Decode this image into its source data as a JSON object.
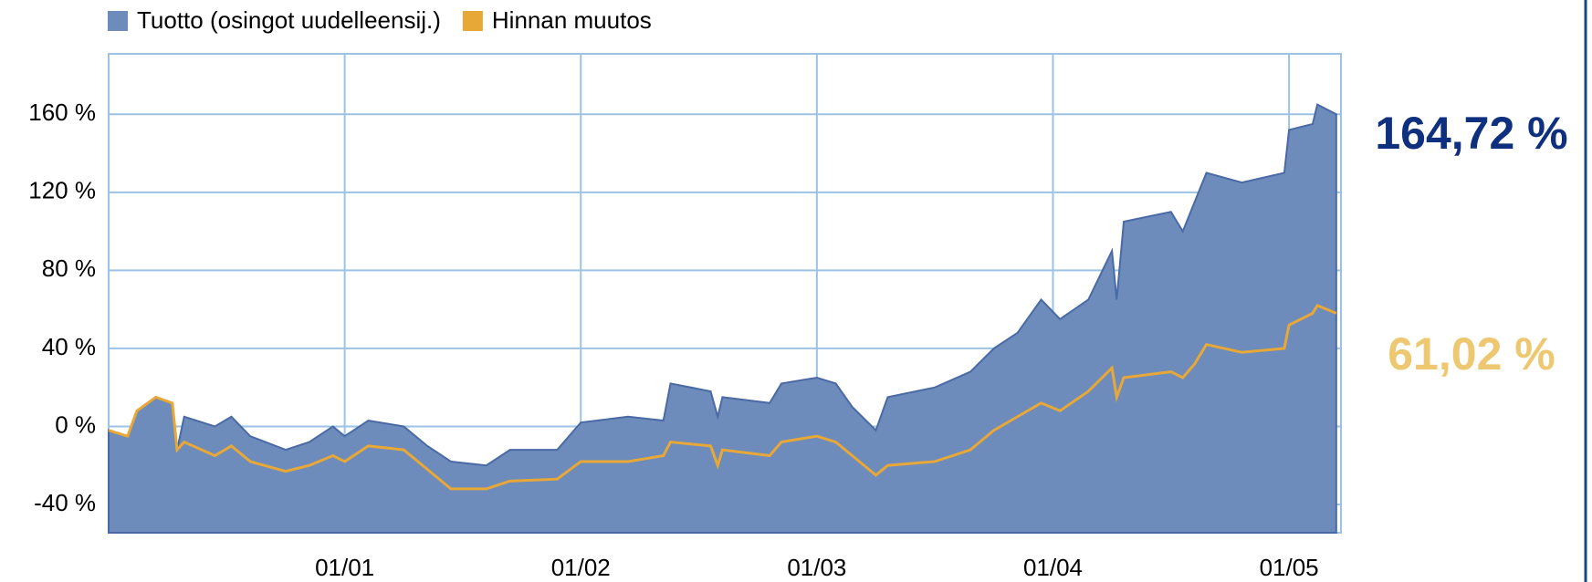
{
  "chart_data": {
    "type": "area_line",
    "x": [
      2000.0,
      2000.08,
      2000.12,
      2000.2,
      2000.27,
      2000.29,
      2000.32,
      2000.45,
      2000.52,
      2000.6,
      2000.75,
      2000.85,
      2000.95,
      2001.0,
      2001.1,
      2001.25,
      2001.35,
      2001.45,
      2001.6,
      2001.7,
      2001.9,
      2002.0,
      2002.2,
      2002.35,
      2002.38,
      2002.55,
      2002.58,
      2002.6,
      2002.8,
      2002.85,
      2003.0,
      2003.08,
      2003.15,
      2003.25,
      2003.3,
      2003.5,
      2003.65,
      2003.75,
      2003.85,
      2003.95,
      2004.03,
      2004.15,
      2004.25,
      2004.27,
      2004.3,
      2004.5,
      2004.55,
      2004.6,
      2004.65,
      2004.8,
      2004.98,
      2005.0,
      2005.1,
      2005.12,
      2005.2
    ],
    "series": [
      {
        "name": "Tuotto (osingot uudelleensij.)",
        "color": "#6d8bbb",
        "values": [
          -2,
          -5,
          8,
          15,
          12,
          -12,
          5,
          0,
          5,
          -5,
          -12,
          -8,
          0,
          -5,
          3,
          0,
          -10,
          -18,
          -20,
          -12,
          -12,
          2,
          5,
          3,
          22,
          18,
          5,
          15,
          12,
          22,
          25,
          22,
          10,
          -2,
          15,
          20,
          28,
          40,
          48,
          65,
          55,
          65,
          90,
          65,
          105,
          110,
          100,
          115,
          130,
          125,
          130,
          152,
          155,
          165,
          160
        ]
      },
      {
        "name": "Hinnan muutos",
        "color": "#e8a838",
        "values": [
          -2,
          -5,
          8,
          15,
          12,
          -12,
          -8,
          -15,
          -10,
          -18,
          -23,
          -20,
          -15,
          -18,
          -10,
          -12,
          -22,
          -32,
          -32,
          -28,
          -27,
          -18,
          -18,
          -15,
          -8,
          -10,
          -20,
          -12,
          -15,
          -8,
          -5,
          -8,
          -15,
          -25,
          -20,
          -18,
          -12,
          -2,
          5,
          12,
          8,
          18,
          30,
          15,
          25,
          28,
          25,
          32,
          42,
          38,
          40,
          52,
          58,
          62,
          58
        ]
      }
    ],
    "annotations": [
      "164,72 %",
      "61,02 %"
    ],
    "xlim": [
      2000.0,
      2005.22
    ],
    "xticks": [
      {
        "value": 2001,
        "label": "01/01"
      },
      {
        "value": 2002,
        "label": "01/02"
      },
      {
        "value": 2003,
        "label": "01/03"
      },
      {
        "value": 2004,
        "label": "01/04"
      },
      {
        "value": 2005,
        "label": "01/05"
      }
    ],
    "ylim": [
      -54.5,
      191
    ],
    "yticks": [
      {
        "value": -40,
        "label": "-40 %"
      },
      {
        "value": 0,
        "label": "0 %"
      },
      {
        "value": 40,
        "label": "40 %"
      },
      {
        "value": 80,
        "label": "80 %"
      },
      {
        "value": 120,
        "label": "120 %"
      },
      {
        "value": 160,
        "label": "160 %"
      }
    ],
    "grid": true
  }
}
